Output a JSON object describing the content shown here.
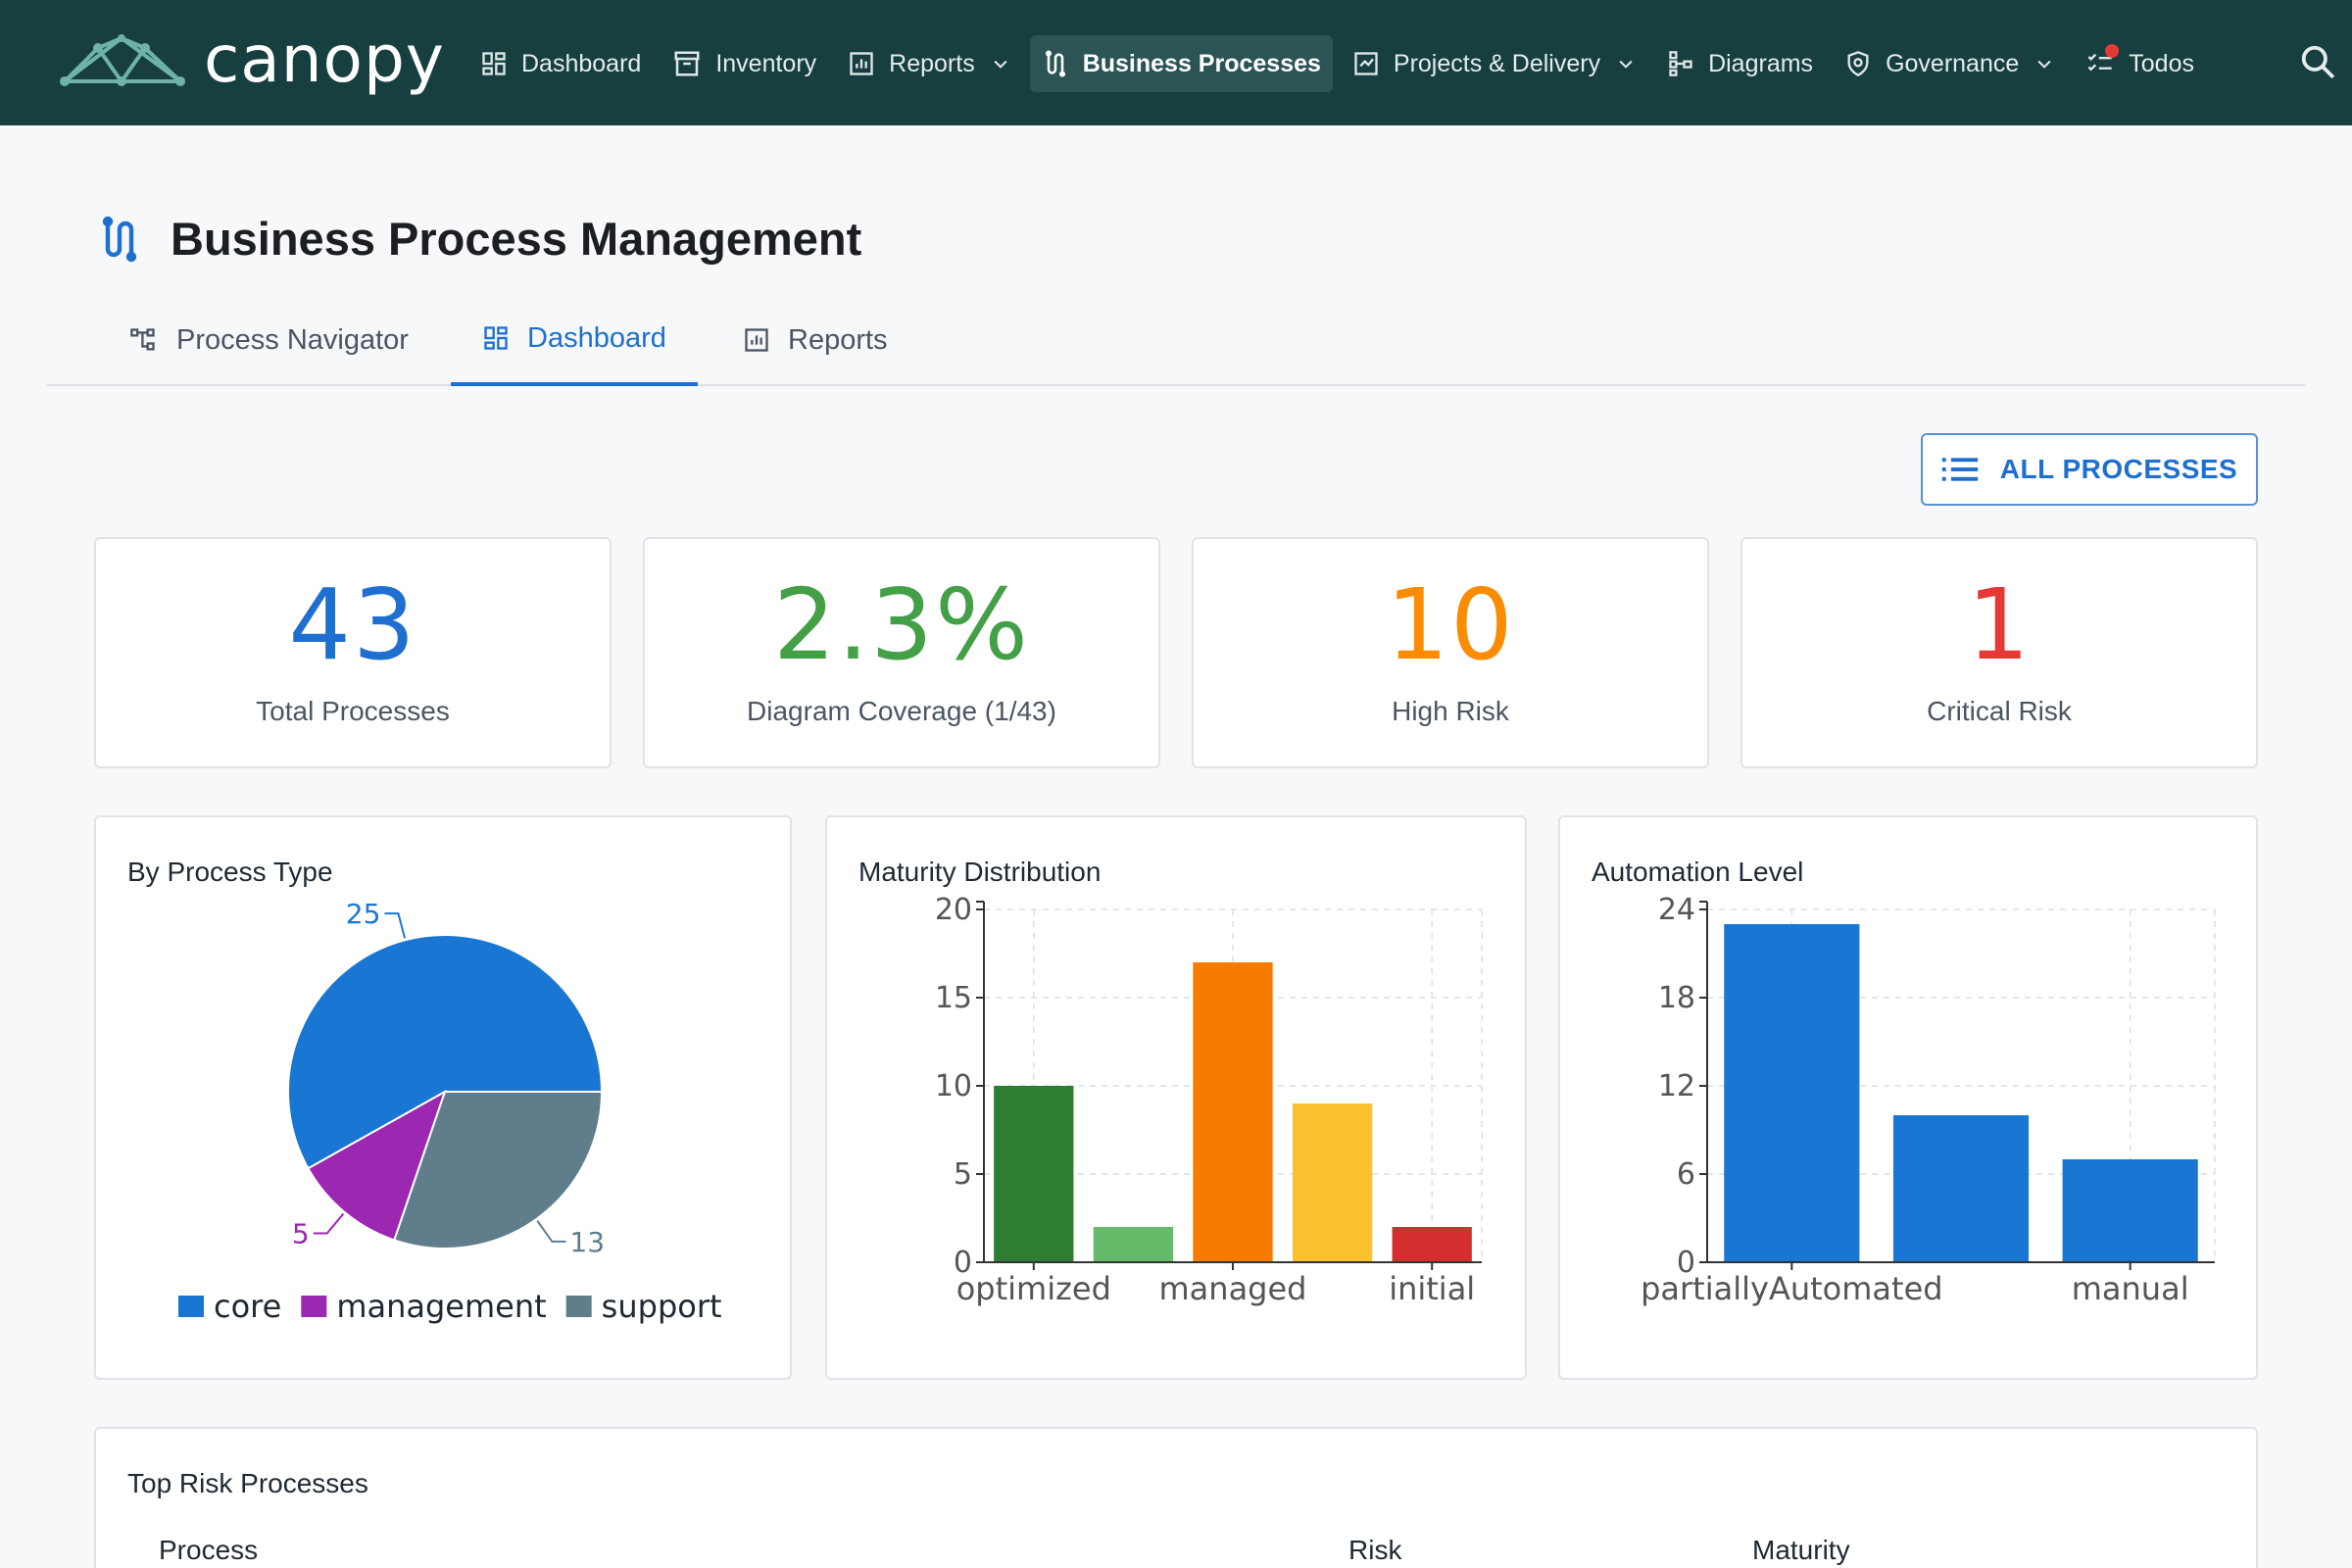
{
  "app": {
    "brand": "canopy"
  },
  "nav": {
    "items": [
      {
        "label": "Dashboard",
        "icon": "dashboard-icon",
        "dropdown": false,
        "active": false
      },
      {
        "label": "Inventory",
        "icon": "archive-icon",
        "dropdown": false,
        "active": false
      },
      {
        "label": "Reports",
        "icon": "report-icon",
        "dropdown": true,
        "active": false
      },
      {
        "label": "Business Processes",
        "icon": "process-icon",
        "dropdown": false,
        "active": true
      },
      {
        "label": "Projects & Delivery",
        "icon": "project-icon",
        "dropdown": true,
        "active": false
      },
      {
        "label": "Diagrams",
        "icon": "diagram-icon",
        "dropdown": false,
        "active": false
      },
      {
        "label": "Governance",
        "icon": "shield-icon",
        "dropdown": true,
        "active": false
      },
      {
        "label": "Todos",
        "icon": "checklist-icon",
        "dropdown": false,
        "active": false
      }
    ]
  },
  "page": {
    "title": "Business Process Management"
  },
  "tabs": [
    {
      "label": "Process Navigator",
      "icon": "hierarchy-icon",
      "active": false
    },
    {
      "label": "Dashboard",
      "icon": "dashboard-icon",
      "active": true
    },
    {
      "label": "Reports",
      "icon": "report-icon",
      "active": false
    }
  ],
  "actions": {
    "all_processes": "ALL PROCESSES"
  },
  "stats": [
    {
      "value": "43",
      "label": "Total Processes",
      "color": "#1e6fd0"
    },
    {
      "value": "2.3%",
      "label": "Diagram Coverage (1/43)",
      "color": "#43a047"
    },
    {
      "value": "10",
      "label": "High Risk",
      "color": "#fb8c00"
    },
    {
      "value": "1",
      "label": "Critical Risk",
      "color": "#e53935"
    }
  ],
  "charts": {
    "type": {
      "title": "By Process Type"
    },
    "maturity": {
      "title": "Maturity Distribution"
    },
    "automation": {
      "title": "Automation Level"
    }
  },
  "chart_data": [
    {
      "type": "pie",
      "title": "By Process Type",
      "slices": [
        {
          "name": "core",
          "value": 25,
          "color": "#1976d2"
        },
        {
          "name": "management",
          "value": 5,
          "color": "#9c27b0"
        },
        {
          "name": "support",
          "value": 13,
          "color": "#607d8b"
        }
      ],
      "legend": "bottom"
    },
    {
      "type": "bar",
      "title": "Maturity Distribution",
      "categories": [
        "optimized",
        "",
        "managed",
        "",
        "initial"
      ],
      "values": [
        10,
        2,
        17,
        9,
        2
      ],
      "colors": [
        "#2e7d32",
        "#66bb6a",
        "#f57c00",
        "#fbc02d",
        "#d32f2f"
      ],
      "yticks": [
        0,
        5,
        10,
        15,
        20
      ],
      "ylim": [
        0,
        20
      ],
      "grid": true
    },
    {
      "type": "bar",
      "title": "Automation Level",
      "categories": [
        "partiallyAutomated",
        "",
        "manual"
      ],
      "values": [
        23,
        10,
        7
      ],
      "colors": [
        "#1976d2",
        "#1976d2",
        "#1976d2"
      ],
      "yticks": [
        0,
        6,
        12,
        18,
        24
      ],
      "ylim": [
        0,
        24
      ],
      "grid": true
    }
  ],
  "risk_table": {
    "title": "Top Risk Processes",
    "columns": [
      "Process",
      "Risk",
      "Maturity"
    ]
  }
}
